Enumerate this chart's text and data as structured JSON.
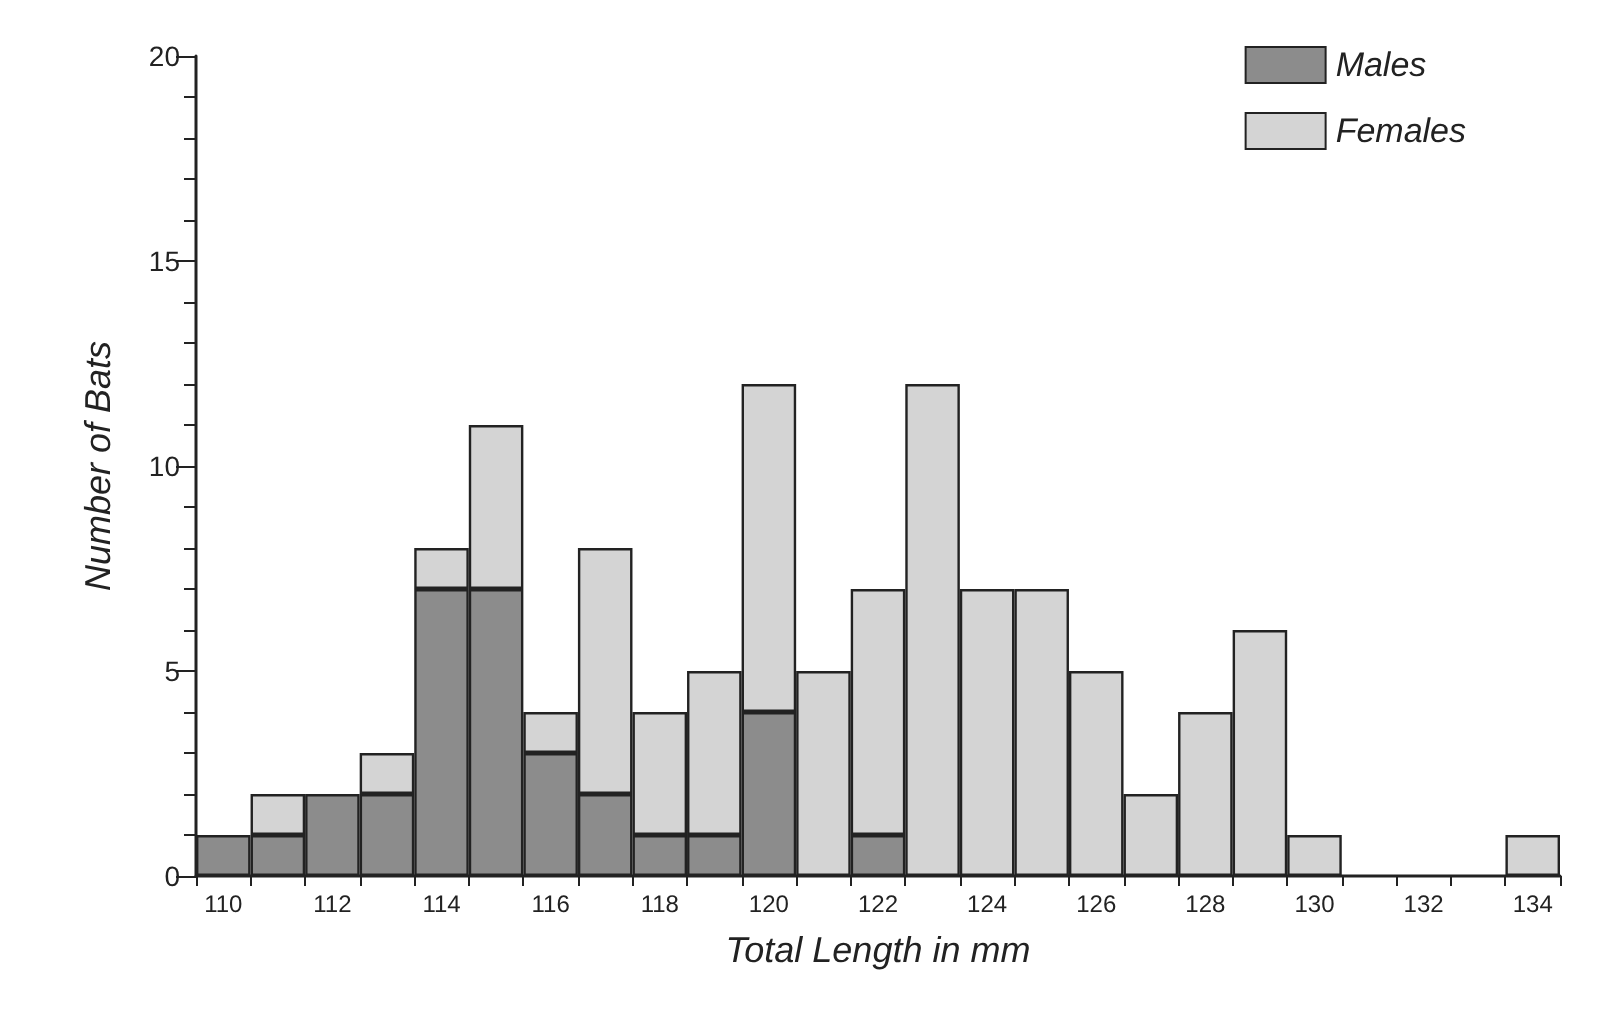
{
  "chart_data": {
    "type": "bar",
    "xlabel": "Total Length in mm",
    "ylabel": "Number of Bats",
    "stacked": true,
    "categories": [
      "110",
      null,
      "112",
      null,
      "114",
      null,
      "116",
      null,
      "118",
      null,
      "120",
      null,
      "122",
      null,
      "124",
      null,
      "126",
      null,
      "128",
      null,
      "130",
      null,
      "132",
      null,
      "134"
    ],
    "series": [
      {
        "name": "Males",
        "color": "#8c8c8c",
        "values": [
          1,
          1,
          2,
          2,
          7,
          7,
          3,
          2,
          1,
          1,
          4,
          0,
          1,
          0,
          0,
          0,
          0,
          0,
          0,
          0,
          0,
          0,
          0,
          0,
          0
        ]
      },
      {
        "name": "Females",
        "color": "#d4d4d4",
        "values": [
          0,
          1,
          0,
          1,
          1,
          4,
          1,
          6,
          3,
          4,
          8,
          5,
          6,
          12,
          7,
          7,
          5,
          2,
          4,
          6,
          1,
          0,
          0,
          0,
          1
        ]
      }
    ],
    "ylim": [
      0,
      20
    ],
    "yticks": [
      0,
      5,
      10,
      15,
      20
    ],
    "grid": false,
    "legend": "top right"
  }
}
